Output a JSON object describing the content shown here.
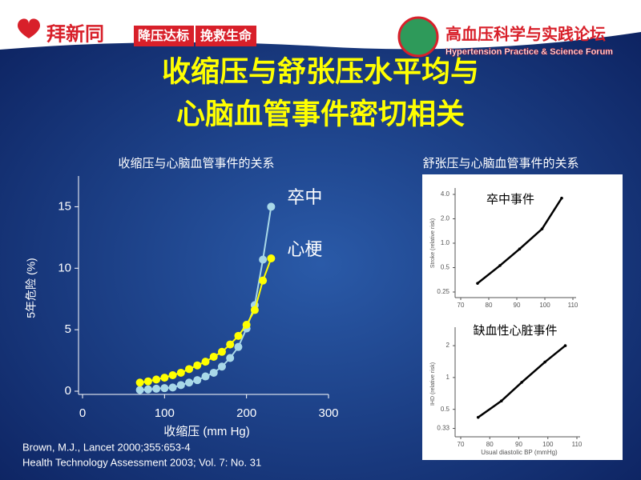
{
  "header": {
    "brand": "拜新同",
    "slogan_1": "降压达标",
    "slogan_2": "挽救生命",
    "forum": "高血压科学与实践论坛",
    "forum_en": "Hypertension Practice & Science Forum"
  },
  "title": [
    "收缩压与舒张压水平均与",
    "心脑血管事件密切相关"
  ],
  "section_title": "舒张压与心脑血管事件的关系",
  "references": [
    "Brown, M.J., Lancet 2000;355:653-4",
    "Health Technology Assessment 2003; Vol. 7: No. 31"
  ],
  "chart_data": [
    {
      "type": "line",
      "title": "收缩压与心脑血管事件的关系",
      "x_label": "收缩压 (mm Hg)",
      "y_label": "5年危险 (%)",
      "x": [
        70,
        80,
        90,
        100,
        110,
        120,
        130,
        140,
        150,
        160,
        170,
        180,
        190,
        200,
        210,
        220,
        230
      ],
      "xlim": [
        0,
        300
      ],
      "xticks": [
        0,
        100,
        200,
        300
      ],
      "ylim": [
        0,
        17.5
      ],
      "yticks": [
        0,
        5,
        10,
        15
      ],
      "series": [
        {
          "name": "卒中",
          "color": "#a8d8e8",
          "values": [
            0.1,
            0.15,
            0.2,
            0.25,
            0.3,
            0.5,
            0.7,
            0.9,
            1.2,
            1.5,
            2.0,
            2.7,
            3.6,
            5.1,
            7.0,
            10.7,
            15.0
          ]
        },
        {
          "name": "心梗",
          "color": "#ffff00",
          "values": [
            0.7,
            0.8,
            0.95,
            1.1,
            1.3,
            1.5,
            1.8,
            2.1,
            2.4,
            2.8,
            3.2,
            3.8,
            4.5,
            5.4,
            6.6,
            9.0,
            10.8
          ]
        }
      ]
    },
    {
      "type": "line",
      "title": "卒中事件",
      "y_label": "Stroke (relative risk)",
      "ylog": true,
      "x": [
        76,
        84,
        91,
        99,
        106
      ],
      "values": [
        0.32,
        0.53,
        0.85,
        1.5,
        3.6
      ],
      "color": "#000000",
      "xlim": [
        70,
        110
      ],
      "xticks": [
        70,
        80,
        90,
        100,
        110
      ],
      "ylim": [
        0.25,
        4.0
      ],
      "yticks": [
        0.25,
        0.5,
        {
          "value": 1,
          "label": "1.0"
        },
        {
          "value": 2,
          "label": "2.0"
        },
        {
          "value": 4,
          "label": "4.0"
        }
      ]
    },
    {
      "type": "line",
      "title": "缺血性心脏事件",
      "y_label": "IHD (relative risk)",
      "x_label": "Usual diastolic BP (mmHg)",
      "ylog": true,
      "x": [
        76,
        84,
        91,
        99,
        106
      ],
      "values": [
        0.42,
        0.6,
        0.9,
        1.4,
        2.0
      ],
      "color": "#000000",
      "xlim": [
        70,
        110
      ],
      "xticks": [
        70,
        80,
        90,
        100,
        110
      ],
      "ylim": [
        0.3,
        2.6
      ],
      "yticks": [
        0.33,
        0.5,
        1,
        2
      ]
    }
  ]
}
